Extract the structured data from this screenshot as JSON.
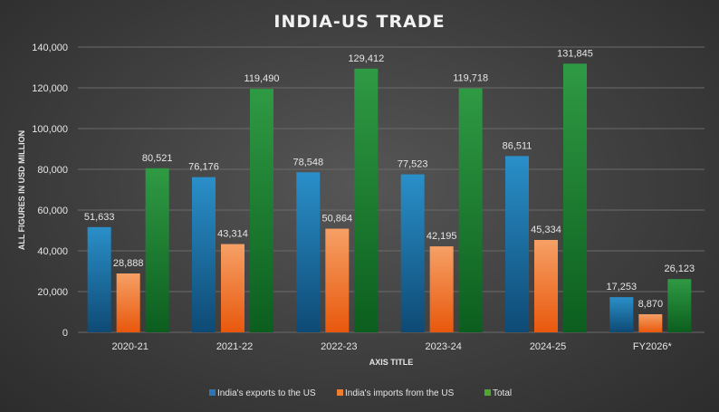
{
  "chart_data": {
    "type": "bar",
    "title": "INDIA-US TRADE",
    "xlabel": "AXIS TITLE",
    "ylabel": "ALL FIGURES IN USD MILLION",
    "ylim": [
      0,
      140000
    ],
    "yticks": [
      "0",
      "20,000",
      "40,000",
      "60,000",
      "80,000",
      "100,000",
      "120,000",
      "140,000"
    ],
    "grid": true,
    "legend_position": "bottom",
    "categories": [
      "2020-21",
      "2021-22",
      "2022-23",
      "2023-24",
      "2024-25",
      "FY2026*"
    ],
    "series": [
      {
        "name": "India's exports to the US",
        "color": "#2e75b6",
        "values": [
          51633,
          76176,
          78548,
          77523,
          86511,
          17253
        ],
        "labels": [
          "51,633",
          "76,176",
          "78,548",
          "77,523",
          "86,511",
          "17,253"
        ]
      },
      {
        "name": "India's imports from the US",
        "color": "#ed7d31",
        "values": [
          28888,
          43314,
          50864,
          42195,
          45334,
          8870
        ],
        "labels": [
          "28,888",
          "43,314",
          "50,864",
          "42,195",
          "45,334",
          "8,870"
        ]
      },
      {
        "name": "Total",
        "color": "#4ea72e",
        "values": [
          80521,
          119490,
          129412,
          119718,
          131845,
          26123
        ],
        "labels": [
          "80,521",
          "119,490",
          "129,412",
          "119,718",
          "131,845",
          "26,123"
        ]
      }
    ]
  },
  "gradients": {
    "series_0": [
      "#2a8fc9",
      "#0e4a75"
    ],
    "series_1": [
      "#f6a066",
      "#e8580c"
    ],
    "series_2": [
      "#2f9a44",
      "#0c5e1e"
    ]
  }
}
